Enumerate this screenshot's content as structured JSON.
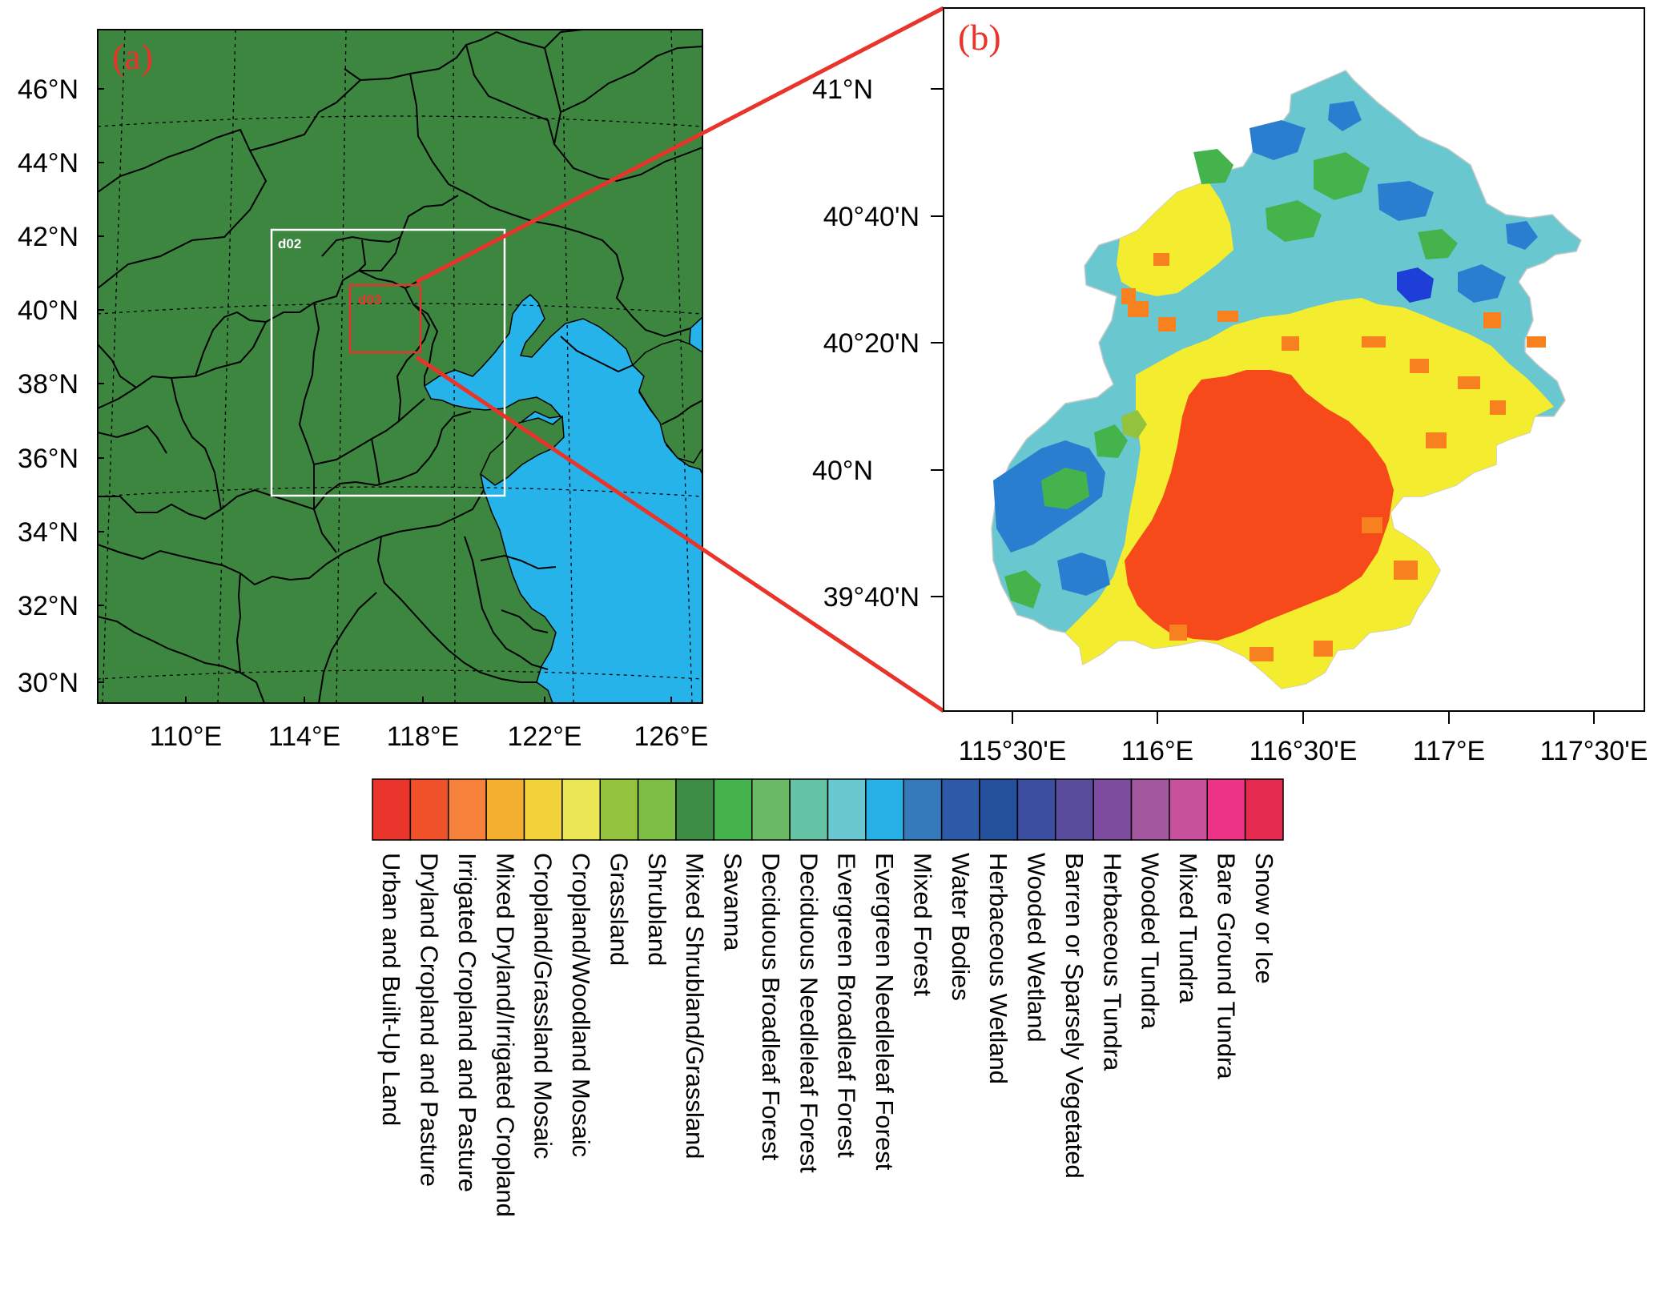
{
  "panel_a": {
    "label": "(a)",
    "lat_labels": [
      "46°N",
      "44°N",
      "42°N",
      "40°N",
      "38°N",
      "36°N",
      "34°N",
      "32°N",
      "30°N"
    ],
    "lon_labels": [
      "110°E",
      "114°E",
      "118°E",
      "122°E",
      "126°E"
    ],
    "domains": [
      {
        "name": "d02",
        "color": "#ffffff"
      },
      {
        "name": "d03",
        "color": "#e8342b"
      }
    ],
    "colors": {
      "land": "#3c8640",
      "sea": "#25b3ea",
      "border": "#000000"
    }
  },
  "panel_b": {
    "label": "(b)",
    "lat_labels": [
      "41°N",
      "40°40'N",
      "40°20'N",
      "40°N",
      "39°40'N"
    ],
    "lon_labels": [
      "115°30'E",
      "116°E",
      "116°30'E",
      "117°E",
      "117°30'E"
    ],
    "zoom_line_color": "#e8342b"
  },
  "legend": {
    "categories": [
      {
        "label": "Urban and Built-Up Land",
        "color": "#e8342b"
      },
      {
        "label": "Dryland Cropland and Pasture",
        "color": "#ef522a"
      },
      {
        "label": "Irrigated Cropland and Pasture",
        "color": "#f6813a"
      },
      {
        "label": "Mixed Dryland/Irrigated Cropland",
        "color": "#f4af30"
      },
      {
        "label": "Cropland/Grassland Mosaic",
        "color": "#f2d23a"
      },
      {
        "label": "Cropland/Woodland Mosaic",
        "color": "#ebe654"
      },
      {
        "label": "Grassland",
        "color": "#93c23d"
      },
      {
        "label": "Shrubland",
        "color": "#7bbd45"
      },
      {
        "label": "Mixed Shrubland/Grassland",
        "color": "#3c8c45"
      },
      {
        "label": "Savanna",
        "color": "#44b34c"
      },
      {
        "label": "Deciduous Broadleaf Forest",
        "color": "#6ab964"
      },
      {
        "label": "Deciduous Needleleaf Forest",
        "color": "#64c3a4"
      },
      {
        "label": "Evergreen Broadleaf Forest",
        "color": "#69c8cf"
      },
      {
        "label": "Evergreen Needleleaf Forest",
        "color": "#27b1e7"
      },
      {
        "label": "Mixed Forest",
        "color": "#3479b9"
      },
      {
        "label": "Water Bodies",
        "color": "#2d5aa6"
      },
      {
        "label": "Herbaceous Wetland",
        "color": "#234f9b"
      },
      {
        "label": "Wooded Wetland",
        "color": "#3b4e9f"
      },
      {
        "label": "Barren or Sparsely Vegetated",
        "color": "#5a4c9d"
      },
      {
        "label": "Herbaceous Tundra",
        "color": "#7d4c9e"
      },
      {
        "label": "Wooded Tundra",
        "color": "#a2579f"
      },
      {
        "label": "Mixed Tundra",
        "color": "#c7519b"
      },
      {
        "label": "Bare Ground Tundra",
        "color": "#ec3386"
      },
      {
        "label": "Snow or Ice",
        "color": "#e52a4f"
      }
    ]
  }
}
